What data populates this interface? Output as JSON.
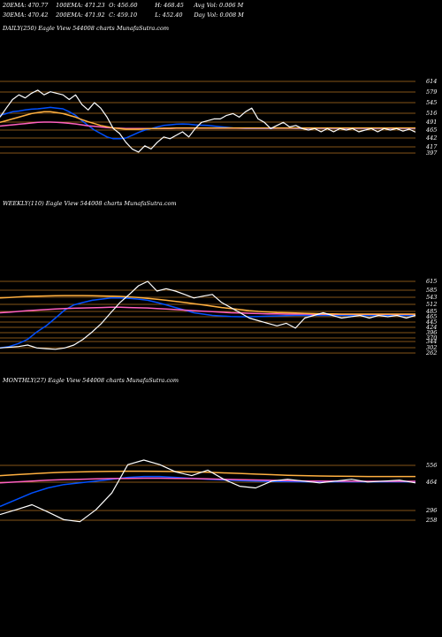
{
  "header": {
    "row1": [
      "20EMA: 470.77",
      "100EMA: 471.23",
      "O: 456.60",
      "H: 468.45",
      "Avg Vol: 0.006 M"
    ],
    "row2": [
      "30EMA: 470.42",
      "200EMA: 471.92",
      "C: 459.10",
      "L: 452.40",
      "Day Vol: 0.008 M"
    ]
  },
  "chart_data": [
    {
      "type": "line",
      "title": "DAILY(250) Eagle View 544008 charts MunafaSutra.com",
      "y_ticks": [
        614,
        579,
        545,
        516,
        491,
        465,
        442,
        417,
        397
      ],
      "series": [
        {
          "color": "#ffffff",
          "values": [
            505,
            530,
            555,
            570,
            560,
            575,
            585,
            570,
            580,
            575,
            570,
            555,
            570,
            540,
            525,
            545,
            530,
            505,
            470,
            455,
            430,
            410,
            400,
            420,
            410,
            430,
            445,
            440,
            450,
            460,
            445,
            470,
            490,
            495,
            500,
            500,
            510,
            515,
            505,
            520,
            530,
            500,
            490,
            470,
            480,
            490,
            475,
            480,
            470,
            465,
            470,
            460,
            470,
            460,
            470,
            465,
            470,
            460,
            465,
            470,
            460,
            470,
            465,
            470,
            462,
            468,
            459
          ]
        },
        {
          "color": "#0050ff",
          "values": [
            510,
            515,
            520,
            522,
            525,
            527,
            528,
            530,
            532,
            530,
            528,
            520,
            510,
            495,
            480,
            465,
            455,
            445,
            440,
            440,
            442,
            450,
            458,
            465,
            470,
            475,
            480,
            482,
            484,
            485,
            484,
            482,
            481,
            480,
            478,
            476,
            474,
            472,
            471,
            470,
            470,
            470,
            470,
            470,
            471,
            471,
            471,
            470,
            470,
            470,
            470,
            470,
            470,
            470,
            470,
            470,
            470,
            470,
            470,
            470,
            470,
            470,
            470,
            470,
            470,
            470,
            470
          ]
        },
        {
          "color": "#ff60c0",
          "values": [
            478,
            480,
            482,
            484,
            486,
            488,
            490,
            491,
            491,
            490,
            489,
            487,
            485,
            482,
            479,
            477,
            475,
            473,
            472,
            471,
            470,
            470,
            470,
            470,
            470,
            470,
            470,
            470,
            471,
            471,
            471,
            471,
            471,
            471,
            471,
            471,
            471,
            471,
            471,
            471,
            471,
            471,
            471,
            471,
            471,
            471,
            471,
            471,
            471,
            471,
            471,
            471,
            471,
            471,
            471,
            471,
            471,
            471,
            471,
            471,
            471,
            471,
            471,
            471,
            471,
            471,
            471
          ]
        },
        {
          "color": "#ffb040",
          "values": [
            490,
            495,
            500,
            505,
            510,
            515,
            518,
            520,
            520,
            518,
            515,
            510,
            505,
            498,
            492,
            486,
            480,
            476,
            472,
            470,
            468,
            468,
            468,
            469,
            470,
            470,
            471,
            471,
            472,
            472,
            472,
            472,
            472,
            472,
            472,
            472,
            472,
            472,
            472,
            472,
            472,
            472,
            472,
            472,
            472,
            472,
            472,
            472,
            472,
            472,
            472,
            472,
            472,
            472,
            472,
            472,
            472,
            472,
            472,
            472,
            472,
            472,
            472,
            472,
            472,
            472,
            472
          ]
        }
      ]
    },
    {
      "type": "line",
      "title": "WEEKLY(110) Eagle View 544008 charts MunafaSutra.com",
      "y_ticks": [
        615,
        585,
        543,
        512,
        485,
        465,
        445,
        424,
        396,
        370,
        344,
        302,
        262
      ],
      "series": [
        {
          "color": "#ffffff",
          "values": [
            300,
            305,
            310,
            320,
            300,
            295,
            290,
            300,
            320,
            360,
            400,
            440,
            480,
            520,
            560,
            600,
            615,
            580,
            590,
            580,
            560,
            540,
            550,
            560,
            520,
            500,
            480,
            460,
            450,
            440,
            430,
            440,
            420,
            460,
            470,
            480,
            470,
            460,
            465,
            470,
            460,
            470,
            465,
            470,
            460,
            470
          ]
        },
        {
          "color": "#0050ff",
          "values": [
            300,
            310,
            330,
            360,
            400,
            430,
            460,
            490,
            510,
            520,
            530,
            535,
            540,
            540,
            538,
            535,
            530,
            520,
            510,
            500,
            490,
            480,
            475,
            470,
            468,
            466,
            465,
            465,
            466,
            467,
            468,
            469,
            470,
            470,
            470,
            470,
            470,
            470,
            470,
            470,
            470,
            470,
            470,
            470,
            470,
            470
          ]
        },
        {
          "color": "#ff60c0",
          "values": [
            480,
            482,
            485,
            488,
            490,
            492,
            494,
            496,
            497,
            498,
            499,
            500,
            501,
            501,
            500,
            499,
            498,
            496,
            494,
            492,
            490,
            488,
            486,
            484,
            482,
            480,
            479,
            478,
            477,
            476,
            476,
            475,
            475,
            475,
            474,
            474,
            474,
            474,
            474,
            474,
            474,
            474,
            474,
            474,
            474,
            474
          ]
        },
        {
          "color": "#ffb040",
          "values": [
            540,
            542,
            545,
            548,
            550,
            551,
            552,
            553,
            553,
            553,
            552,
            551,
            550,
            548,
            545,
            542,
            538,
            534,
            530,
            525,
            520,
            515,
            510,
            505,
            500,
            496,
            492,
            488,
            485,
            483,
            481,
            480,
            479,
            478,
            477,
            476,
            476,
            475,
            475,
            475,
            475,
            475,
            475,
            475,
            475,
            475
          ]
        }
      ]
    },
    {
      "type": "line",
      "title": "MONTHLY(27) Eagle View 544008 charts MunafaSutra.com",
      "y_ticks": [
        556,
        464,
        296,
        258
      ],
      "series": [
        {
          "color": "#ffffff",
          "values": [
            280,
            300,
            330,
            290,
            260,
            250,
            300,
            400,
            560,
            620,
            560,
            520,
            500,
            530,
            480,
            440,
            430,
            470,
            480,
            470,
            460,
            470,
            480,
            465,
            470,
            475,
            460
          ]
        },
        {
          "color": "#0050ff",
          "values": [
            320,
            360,
            400,
            430,
            450,
            460,
            470,
            480,
            490,
            495,
            495,
            490,
            485,
            480,
            476,
            472,
            470,
            468,
            467,
            466,
            466,
            466,
            466,
            466,
            466,
            466,
            466
          ]
        },
        {
          "color": "#ff60c0",
          "values": [
            460,
            465,
            470,
            475,
            478,
            480,
            482,
            484,
            485,
            486,
            486,
            485,
            484,
            482,
            480,
            478,
            476,
            474,
            472,
            471,
            470,
            470,
            469,
            469,
            469,
            469,
            469
          ]
        },
        {
          "color": "#ffb040",
          "values": [
            500,
            505,
            510,
            515,
            518,
            520,
            522,
            523,
            524,
            524,
            523,
            522,
            520,
            518,
            515,
            512,
            508,
            505,
            502,
            500,
            498,
            497,
            496,
            495,
            495,
            495,
            495
          ]
        }
      ]
    }
  ]
}
